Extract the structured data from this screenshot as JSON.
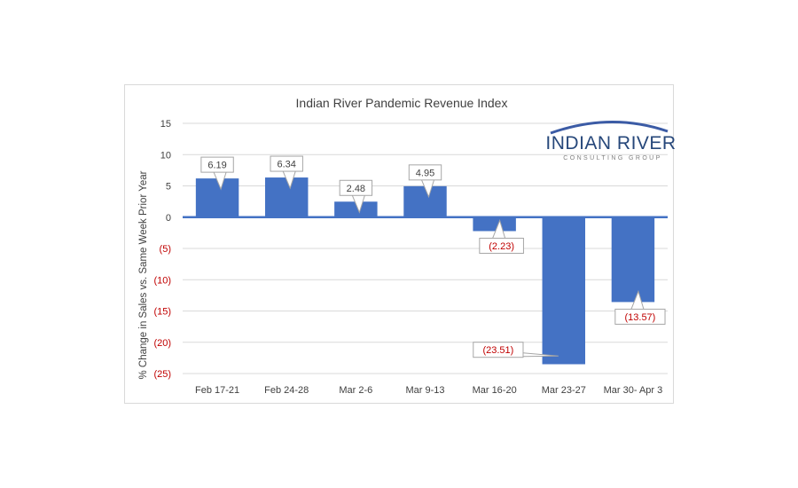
{
  "chart_data": {
    "type": "bar",
    "title": "Indian River Pandemic Revenue Index",
    "xlabel": "",
    "ylabel": "% Change in Sales vs. Same Week Prior Year",
    "categories": [
      "Feb 17-21",
      "Feb 24-28",
      "Mar 2-6",
      "Mar 9-13",
      "Mar 16-20",
      "Mar 23-27",
      "Mar 30- Apr 3"
    ],
    "values": [
      6.19,
      6.34,
      2.48,
      4.95,
      -2.23,
      -23.51,
      -13.57
    ],
    "data_labels": [
      "6.19",
      "6.34",
      "2.48",
      "4.95",
      "(2.23)",
      "(23.51)",
      "(13.57)"
    ],
    "yticks": [
      15,
      10,
      5,
      0,
      -5,
      -10,
      -15,
      -20,
      -25
    ],
    "ytick_labels": [
      "15",
      "10",
      "5",
      "0",
      "(5)",
      "(10)",
      "(15)",
      "(20)",
      "(25)"
    ],
    "ylim": [
      -25,
      15
    ],
    "grid": true,
    "legend": "none"
  },
  "logo": {
    "line1": "INDIAN RIVER",
    "line2": "CONSULTING GROUP"
  },
  "colors": {
    "bar": "#4472c4",
    "negative_text": "#c00000",
    "positive_text": "#404040",
    "grid": "#d9d9d9",
    "title": "#404040"
  }
}
